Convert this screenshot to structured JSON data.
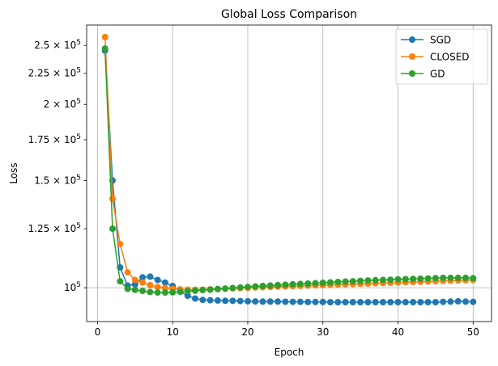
{
  "chart_data": {
    "type": "line",
    "title": "Global Loss Comparison",
    "xlabel": "Epoch",
    "ylabel": "Loss",
    "xlim": [
      -1.45,
      52.45
    ],
    "ylim": [
      88000,
      270000
    ],
    "yscale": "log",
    "grid": "x-major-and-y-1e5",
    "legend_position": "top-right",
    "x_ticks": [
      0,
      10,
      20,
      30,
      40,
      50
    ],
    "x_tick_labels": [
      "0",
      "10",
      "20",
      "30",
      "40",
      "50"
    ],
    "y_ticks": [
      100000,
      125000,
      150000,
      175000,
      200000,
      225000,
      250000
    ],
    "y_tick_labels": [
      {
        "mantissa": "",
        "exp": "10",
        "power": "5"
      },
      {
        "mantissa": "1.25 × ",
        "exp": "10",
        "power": "5"
      },
      {
        "mantissa": "1.5 × ",
        "exp": "10",
        "power": "5"
      },
      {
        "mantissa": "1.75 × ",
        "exp": "10",
        "power": "5"
      },
      {
        "mantissa": "2 × ",
        "exp": "10",
        "power": "5"
      },
      {
        "mantissa": "2.25 × ",
        "exp": "10",
        "power": "5"
      },
      {
        "mantissa": "2.5 × ",
        "exp": "10",
        "power": "5"
      }
    ],
    "x": [
      1,
      2,
      3,
      4,
      5,
      6,
      7,
      8,
      9,
      10,
      11,
      12,
      13,
      14,
      15,
      16,
      17,
      18,
      19,
      20,
      21,
      22,
      23,
      24,
      25,
      26,
      27,
      28,
      29,
      30,
      31,
      32,
      33,
      34,
      35,
      36,
      37,
      38,
      39,
      40,
      41,
      42,
      43,
      44,
      45,
      46,
      47,
      48,
      49,
      50
    ],
    "series": [
      {
        "name": "SGD",
        "color": "#1f77b4",
        "values": [
          245000,
          150000,
          108000,
          100800,
          101300,
          104000,
          104300,
          103000,
          102000,
          100700,
          98500,
          97000,
          96000,
          95500,
          95400,
          95300,
          95200,
          95200,
          95100,
          95000,
          94950,
          94900,
          94900,
          94900,
          94850,
          94800,
          94800,
          94750,
          94750,
          94750,
          94700,
          94700,
          94700,
          94700,
          94700,
          94700,
          94700,
          94700,
          94700,
          94700,
          94700,
          94700,
          94700,
          94700,
          94700,
          94800,
          94900,
          95000,
          94900,
          94800
        ]
      },
      {
        "name": "CLOSED",
        "color": "#ff7f0e",
        "values": [
          258000,
          140000,
          118000,
          106000,
          103000,
          102000,
          101000,
          100300,
          99900,
          99600,
          99400,
          99300,
          99250,
          99300,
          99400,
          99500,
          99600,
          99800,
          99900,
          100000,
          100100,
          100200,
          100300,
          100400,
          100500,
          100600,
          100700,
          100800,
          100900,
          101000,
          101100,
          101200,
          101300,
          101400,
          101500,
          101600,
          101700,
          101800,
          101900,
          102000,
          102100,
          102200,
          102300,
          102400,
          102500,
          102600,
          102700,
          102800,
          102900,
          103000
        ]
      },
      {
        "name": "GD",
        "color": "#2ca02c",
        "values": [
          247000,
          125000,
          102500,
          99600,
          99200,
          98800,
          98400,
          98200,
          98200,
          98300,
          98500,
          98700,
          98900,
          99100,
          99300,
          99500,
          99700,
          99900,
          100100,
          100300,
          100500,
          100700,
          100850,
          101000,
          101150,
          101300,
          101450,
          101600,
          101750,
          101900,
          102050,
          102200,
          102350,
          102500,
          102650,
          102800,
          102900,
          103000,
          103100,
          103200,
          103300,
          103400,
          103500,
          103600,
          103700,
          103800,
          103800,
          103800,
          103800,
          103700
        ]
      }
    ]
  }
}
